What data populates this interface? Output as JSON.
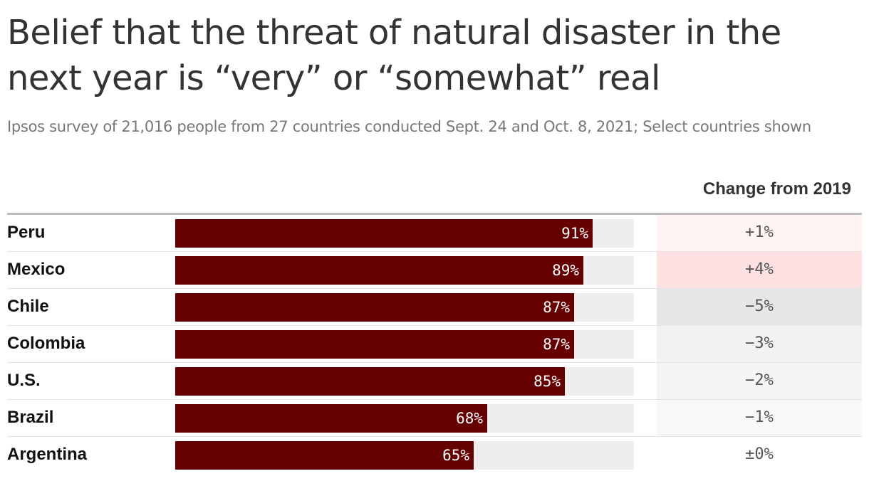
{
  "title": "Belief that the threat of natural disaster in the next year is “very” or “somewhat” real",
  "subtitle": "Ipsos survey of 21,016 people from 27 countries conducted Sept. 24 and Oct. 8, 2021; Select countries shown",
  "change_header": "Change from 2019",
  "colors": {
    "bar": "#660000",
    "track": "#eeeeee"
  },
  "chart_data": {
    "type": "bar",
    "orientation": "horizontal",
    "title": "Belief that the threat of natural disaster in the next year is “very” or “somewhat” real",
    "categories": [
      "Peru",
      "Mexico",
      "Chile",
      "Colombia",
      "U.S.",
      "Brazil",
      "Argentina"
    ],
    "values": [
      91,
      89,
      87,
      87,
      85,
      68,
      65
    ],
    "value_labels": [
      "91%",
      "89%",
      "87%",
      "87%",
      "85%",
      "68%",
      "65%"
    ],
    "xlim": [
      0,
      100
    ],
    "change_from_2019": [
      "+1%",
      "+4%",
      "−5%",
      "−3%",
      "−2%",
      "−1%",
      "±0%"
    ],
    "change_values": [
      1,
      4,
      -5,
      -3,
      -2,
      -1,
      0
    ],
    "change_colors": [
      "#fff3f3",
      "#fde0e1",
      "#e6e7e8",
      "#f1f2f2",
      "#f4f5f5",
      "#f8f8f8",
      "#ffffff"
    ]
  }
}
